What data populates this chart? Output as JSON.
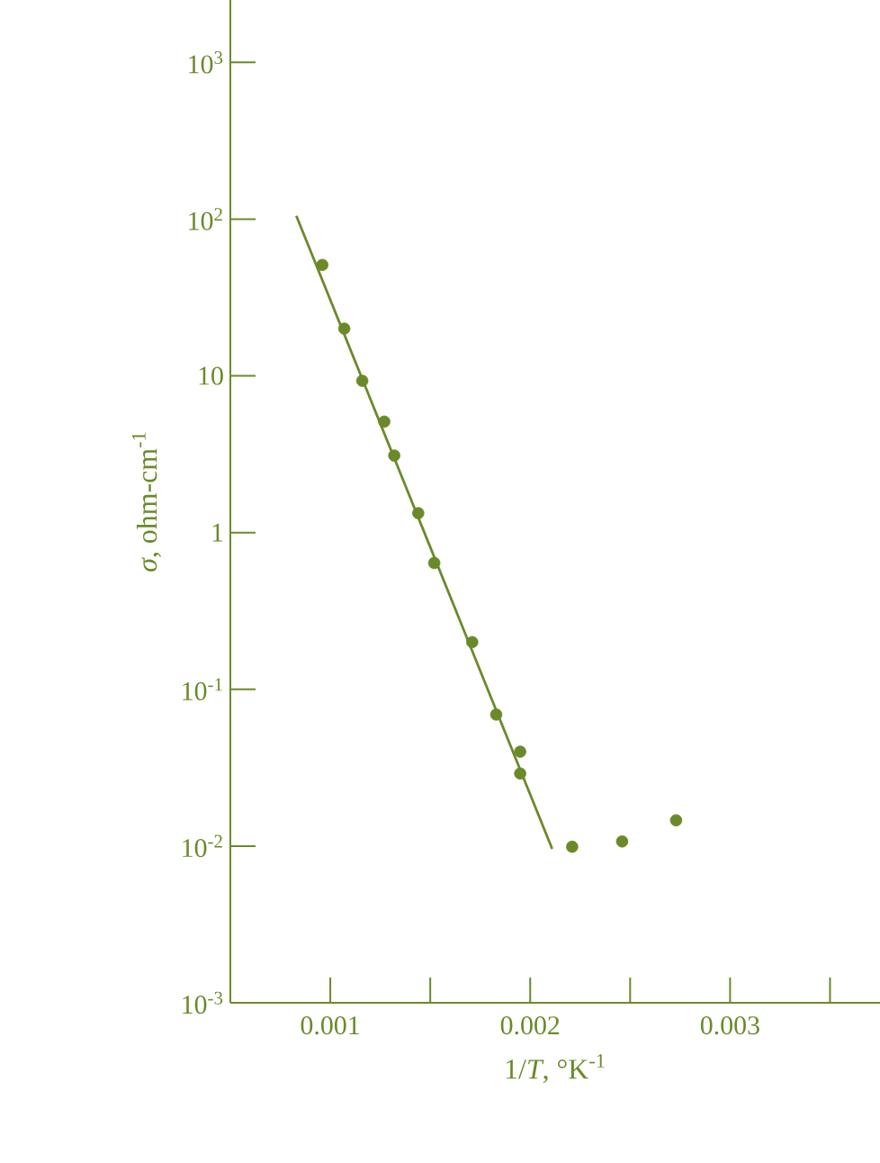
{
  "chart_data": {
    "type": "scatter",
    "xlabel": "1/*T*, °K$^{-1}$",
    "ylabel": "*σ*, ohm-cm$^{-1}$",
    "log": "y",
    "xlim": [
      0.0005,
      0.00375
    ],
    "ylim": [
      0.001,
      2500
    ],
    "xticks": [
      0.001,
      {
        "value": 0.0015,
        "label": null
      },
      0.002,
      {
        "value": 0.0025,
        "label": null
      },
      0.003,
      {
        "value": 0.0035,
        "label": null
      }
    ],
    "yticks": [
      {
        "value": 0.001,
        "label": "10$^{-3}$"
      },
      {
        "value": 0.01,
        "label": "10$^{-2}$"
      },
      {
        "value": 0.1,
        "label": "10$^{-1}$"
      },
      1,
      10,
      {
        "value": 100,
        "label": "10$^{2}$"
      },
      {
        "value": 1000,
        "label": "10$^{3}$"
      }
    ],
    "series": [
      {
        "marker": "circle",
        "color": "#6a8a2a",
        "x": [
          0.00096,
          0.00107,
          0.00116,
          0.00127,
          0.00132,
          0.00144,
          0.00152,
          0.00171,
          0.00183,
          0.00195,
          0.00195,
          0.00221,
          0.00246,
          0.00273
        ],
        "values": [
          51,
          20,
          9.3,
          5.1,
          3.1,
          1.33,
          0.64,
          0.2,
          0.069,
          0.04,
          0.029,
          0.0099,
          0.0107,
          0.0146
        ]
      },
      {
        "type": "line",
        "marker": "none",
        "color": "#6a8a2a",
        "x": [
          0.00083,
          0.00211
        ],
        "values": [
          105,
          0.0096
        ]
      }
    ]
  }
}
